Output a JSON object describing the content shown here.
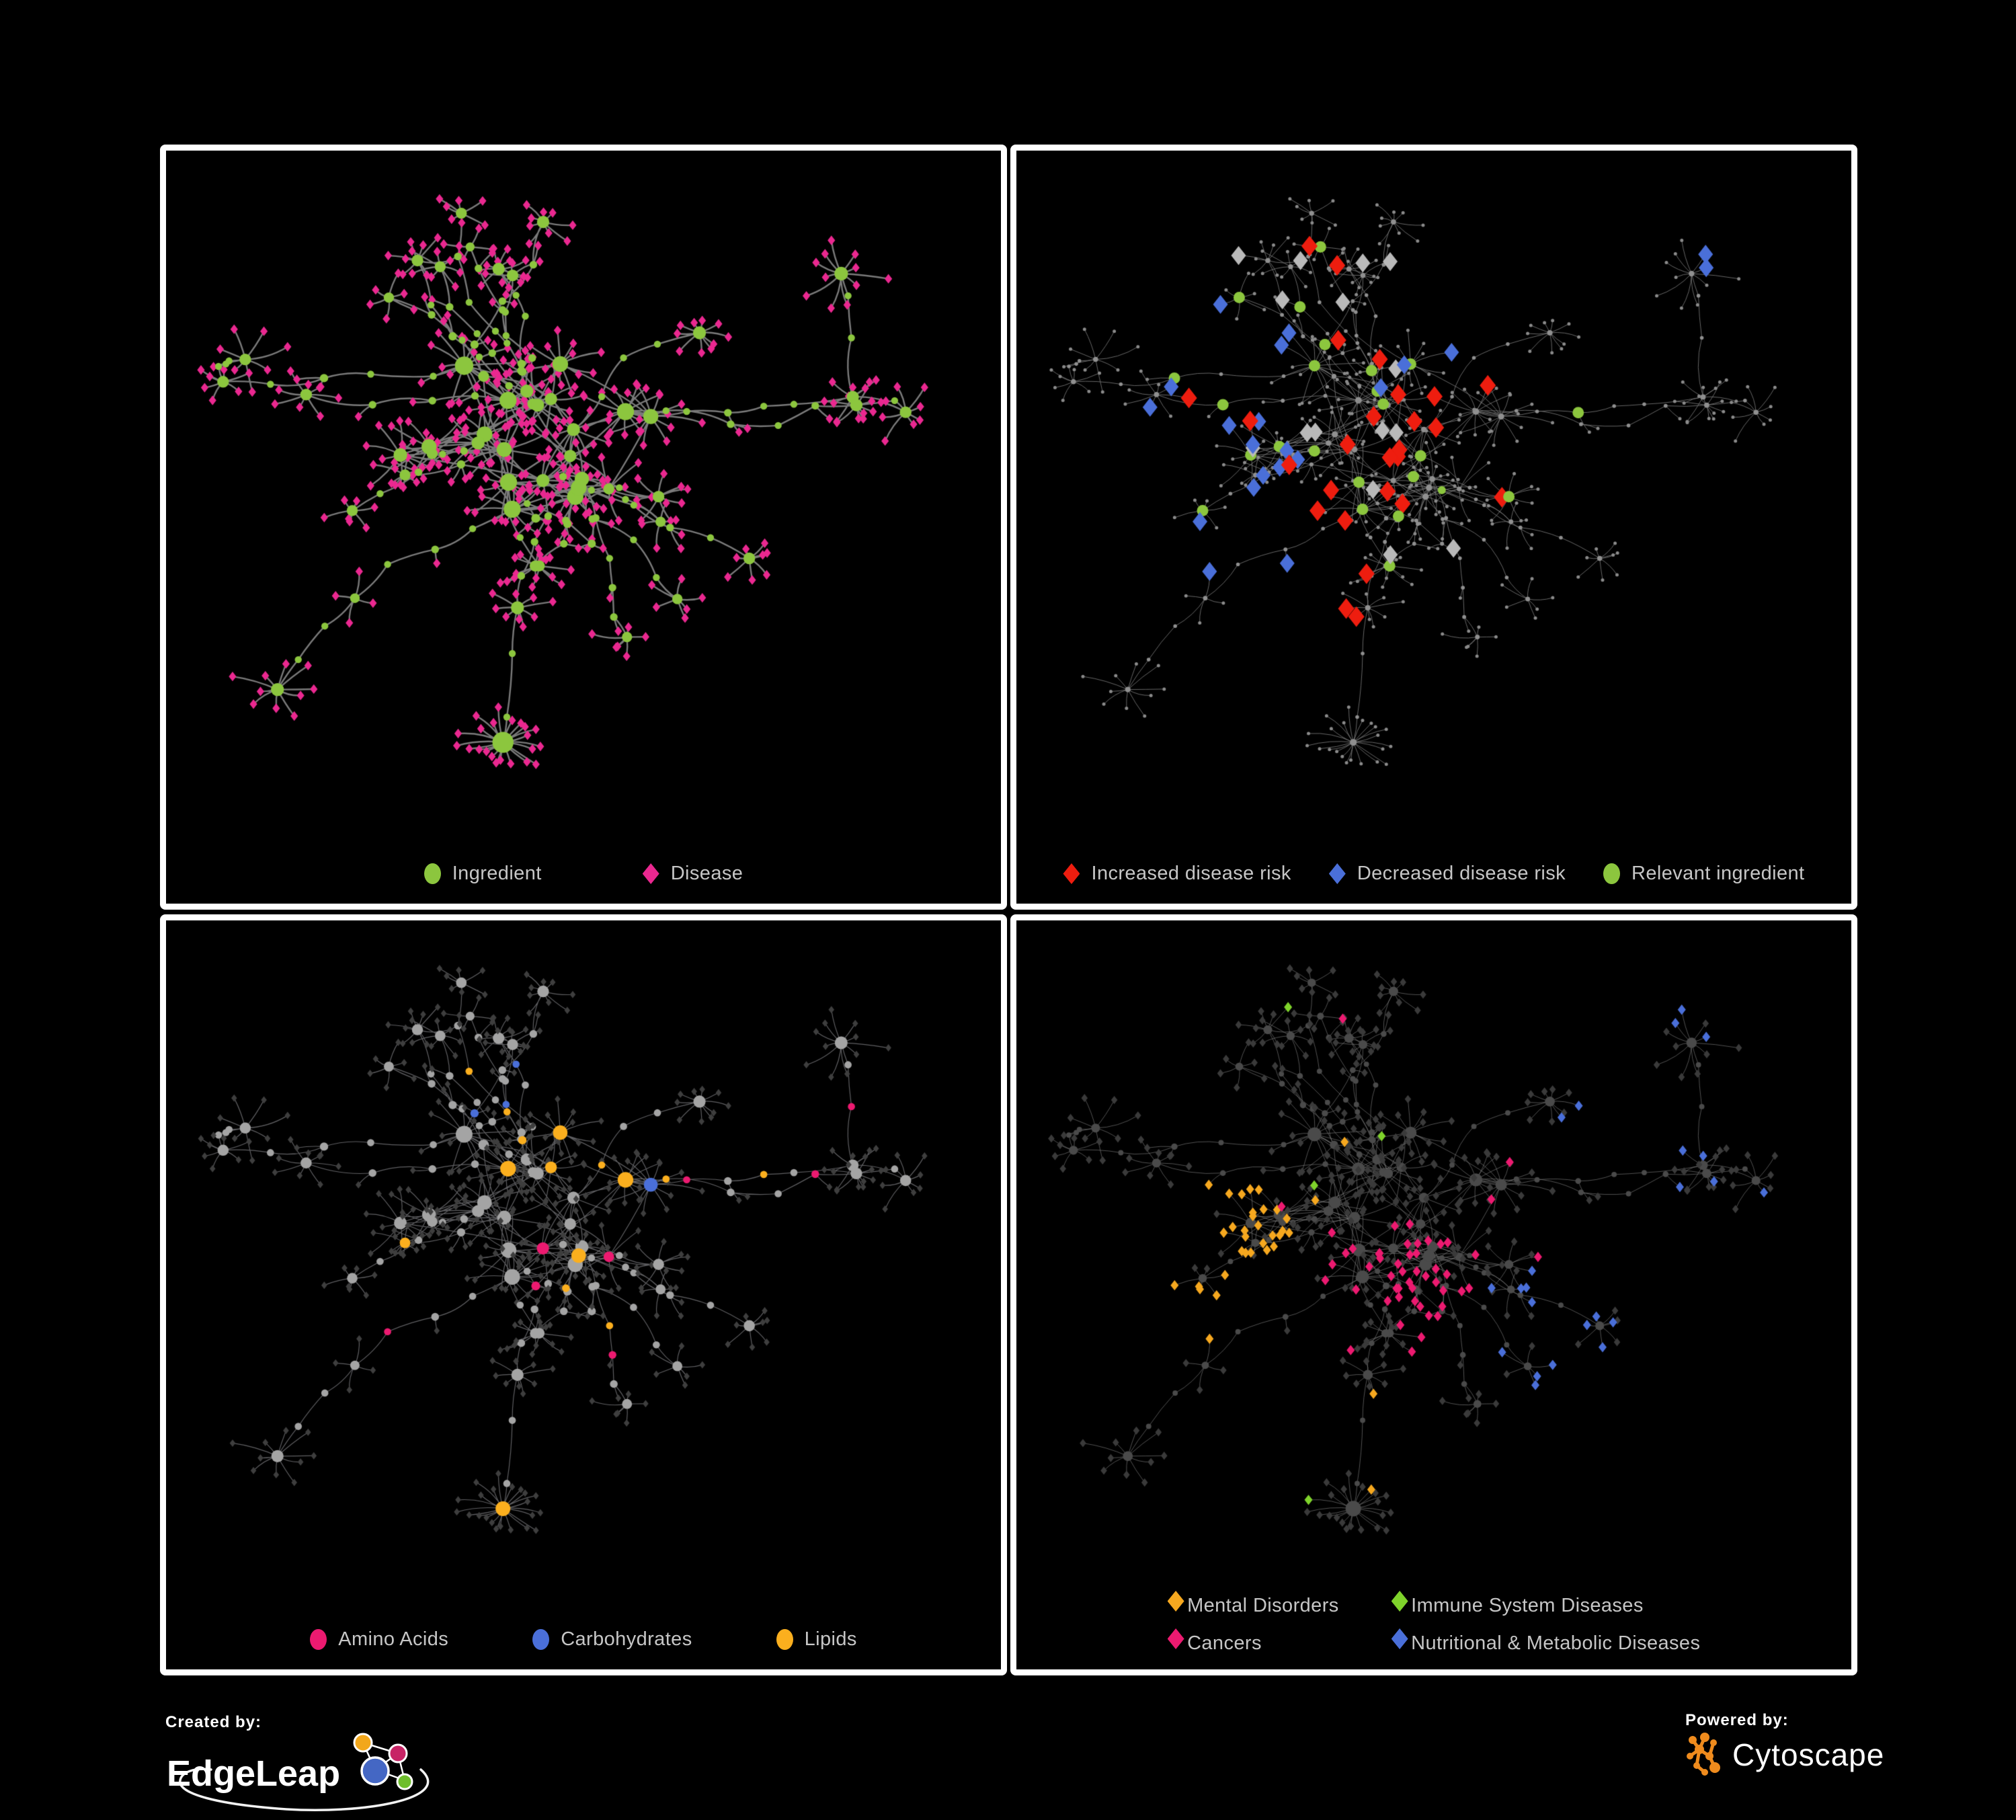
{
  "colors": {
    "background": "#000000",
    "panel_border": "#ffffff",
    "legend_text": "#c6c6c6",
    "ingredient_green": "#8CC63E",
    "disease_pink": "#EA2890",
    "risk_red": "#EE1D0F",
    "risk_blue": "#4A6FD9",
    "risk_gray": "#B9B9B9",
    "amino_pink": "#EC1A70",
    "carb_blue": "#4A6FD9",
    "lipid_yellow": "#FBAF1E",
    "mental_orange": "#F6A81F",
    "immune_green": "#7FD32B",
    "cancer_pink": "#EC1A70",
    "nutri_blue": "#4A6FD9",
    "edgeleap_orange": "#F2A71B",
    "edgeleap_pink": "#C72365",
    "edgeleap_blue": "#4467C4",
    "edgeleap_green": "#6EBE2C",
    "cytoscape_orange": "#EF8B1D"
  },
  "panels": [
    {
      "name": "ingredient-disease-network",
      "legend": [
        {
          "shape": "circle",
          "color": "#8CC63E",
          "label": "Ingredient"
        },
        {
          "shape": "diamond",
          "color": "#EA2890",
          "label": "Disease"
        }
      ]
    },
    {
      "name": "disease-risk-network",
      "legend": [
        {
          "shape": "diamond",
          "color": "#EE1D0F",
          "label": "Increased disease risk"
        },
        {
          "shape": "diamond",
          "color": "#4A6FD9",
          "label": "Decreased disease risk"
        },
        {
          "shape": "circle",
          "color": "#8CC63E",
          "label": "Relevant ingredient"
        }
      ]
    },
    {
      "name": "ingredient-classes-network",
      "legend": [
        {
          "shape": "circle",
          "color": "#EC1A70",
          "label": "Amino Acids"
        },
        {
          "shape": "circle",
          "color": "#4A6FD9",
          "label": "Carbohydrates"
        },
        {
          "shape": "circle",
          "color": "#FBAF1E",
          "label": "Lipids"
        }
      ]
    },
    {
      "name": "disease-categories-network",
      "legend": [
        {
          "shape": "diamond",
          "color": "#F6A81F",
          "label": "Mental Disorders"
        },
        {
          "shape": "diamond",
          "color": "#7FD32B",
          "label": "Immune System Diseases"
        },
        {
          "shape": "diamond",
          "color": "#EC1A70",
          "label": "Cancers"
        },
        {
          "shape": "diamond",
          "color": "#4A6FD9",
          "label": "Nutritional & Metabolic Diseases"
        }
      ]
    }
  ],
  "footer": {
    "created_by_label": "Created by:",
    "edgeleap_wordmark": "EdgeLeap",
    "powered_by_label": "Powered by:",
    "cytoscape_wordmark": "Cytoscape"
  },
  "chart_data": {
    "type": "network",
    "title": "",
    "description": "One ingredient-disease association network rendered four times with different node color mappings",
    "views": [
      {
        "panel": "top-left",
        "legend": [
          "Ingredient",
          "Disease"
        ]
      },
      {
        "panel": "top-right",
        "legend": [
          "Increased disease risk",
          "Decreased disease risk",
          "Relevant ingredient"
        ]
      },
      {
        "panel": "bottom-left",
        "legend": [
          "Amino Acids",
          "Carbohydrates",
          "Lipids"
        ]
      },
      {
        "panel": "bottom-right",
        "legend": [
          "Mental Disorders",
          "Immune System Diseases",
          "Cancers",
          "Nutritional & Metabolic Diseases"
        ]
      }
    ],
    "layout": {
      "node_shapes": {
        "ingredient": "circle",
        "disease": "diamond"
      },
      "edge_color": "gray",
      "background": "black",
      "grid": "2x2 panels with white borders"
    }
  }
}
